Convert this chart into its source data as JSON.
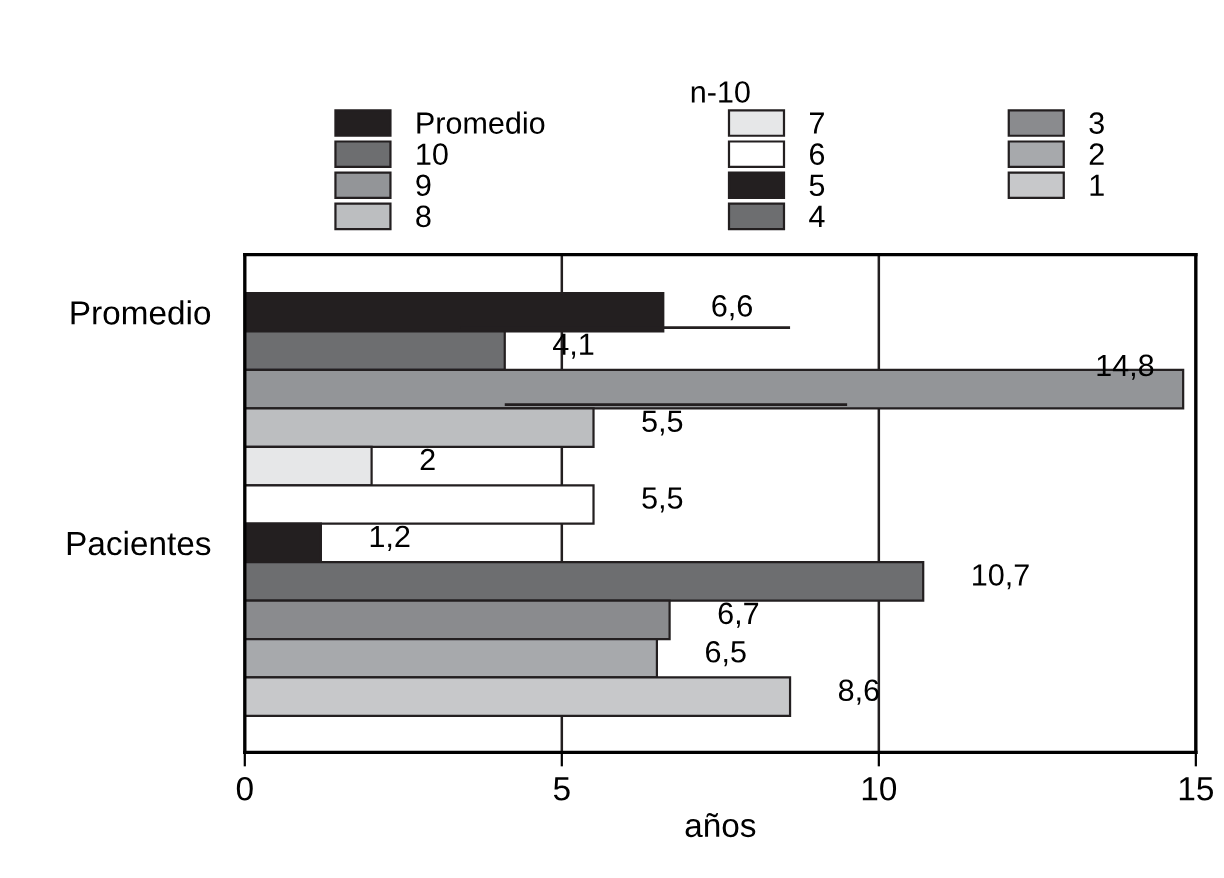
{
  "chart_data": {
    "type": "bar",
    "orientation": "horizontal",
    "xlabel": "años",
    "legend_title": "n-10",
    "categories": [
      "Promedio",
      null,
      null,
      null,
      null,
      null,
      "Pacientes",
      null,
      null,
      null,
      null
    ],
    "series": [
      {
        "name": "Promedio",
        "color": "#231f20",
        "values": [
          6.6,
          null,
          null,
          null,
          null,
          null,
          null,
          null,
          null,
          null,
          null
        ],
        "value_labels": [
          "6,6",
          null,
          null,
          null,
          null,
          null,
          null,
          null,
          null,
          null,
          null
        ],
        "errors": [
          [
            3.4,
            8.6
          ],
          null,
          null,
          null,
          null,
          null,
          null,
          null,
          null,
          null,
          null
        ]
      },
      {
        "name": "10",
        "color": "#6d6e70",
        "values": [
          null,
          4.1,
          null,
          null,
          null,
          null,
          null,
          null,
          null,
          null,
          null
        ],
        "value_labels": [
          null,
          "4,1",
          null,
          null,
          null,
          null,
          null,
          null,
          null,
          null,
          null
        ]
      },
      {
        "name": "9",
        "color": "#939598",
        "values": [
          null,
          null,
          14.8,
          null,
          null,
          null,
          null,
          null,
          null,
          null,
          null
        ],
        "value_labels": [
          null,
          null,
          "14,8",
          null,
          null,
          null,
          null,
          null,
          null,
          null,
          null
        ],
        "errors": [
          null,
          null,
          [
            4.1,
            9.5
          ],
          null,
          null,
          null,
          null,
          null,
          null,
          null,
          null
        ]
      },
      {
        "name": "8",
        "color": "#bcbec0",
        "values": [
          null,
          null,
          null,
          5.5,
          null,
          null,
          null,
          null,
          null,
          null,
          null
        ],
        "value_labels": [
          null,
          null,
          null,
          "5,5",
          null,
          null,
          null,
          null,
          null,
          null,
          null
        ]
      },
      {
        "name": "7",
        "color": "#e6e7e8",
        "values": [
          null,
          null,
          null,
          null,
          2,
          null,
          null,
          null,
          null,
          null,
          null
        ],
        "value_labels": [
          null,
          null,
          null,
          null,
          "2",
          null,
          null,
          null,
          null,
          null,
          null
        ]
      },
      {
        "name": "6",
        "color": "#ffffff",
        "values": [
          null,
          null,
          null,
          null,
          null,
          5.5,
          null,
          null,
          null,
          null,
          null
        ],
        "value_labels": [
          null,
          null,
          null,
          null,
          null,
          "5,5",
          null,
          null,
          null,
          null,
          null
        ]
      },
      {
        "name": "5",
        "color": "#231f20",
        "values": [
          null,
          null,
          null,
          null,
          null,
          null,
          1.2,
          null,
          null,
          null,
          null
        ],
        "value_labels": [
          null,
          null,
          null,
          null,
          null,
          null,
          "1,2",
          null,
          null,
          null,
          null
        ]
      },
      {
        "name": "4",
        "color": "#6d6e70",
        "values": [
          null,
          null,
          null,
          null,
          null,
          null,
          null,
          10.7,
          null,
          null,
          null
        ],
        "value_labels": [
          null,
          null,
          null,
          null,
          null,
          null,
          null,
          "10,7",
          null,
          null,
          null
        ]
      },
      {
        "name": "3",
        "color": "#8a8b8e",
        "values": [
          null,
          null,
          null,
          null,
          null,
          null,
          null,
          null,
          6.7,
          null,
          null
        ],
        "value_labels": [
          null,
          null,
          null,
          null,
          null,
          null,
          null,
          null,
          "6,7",
          null,
          null
        ]
      },
      {
        "name": "2",
        "color": "#a7a9ac",
        "values": [
          null,
          null,
          null,
          null,
          null,
          null,
          null,
          null,
          null,
          6.5,
          null
        ],
        "value_labels": [
          null,
          null,
          null,
          null,
          null,
          null,
          null,
          null,
          null,
          "6,5",
          null
        ]
      },
      {
        "name": "1",
        "color": "#c7c8ca",
        "values": [
          null,
          null,
          null,
          null,
          null,
          null,
          null,
          null,
          null,
          null,
          8.6
        ],
        "value_labels": [
          null,
          null,
          null,
          null,
          null,
          null,
          null,
          null,
          null,
          null,
          "8,6"
        ]
      }
    ],
    "xlim": [
      0,
      15
    ],
    "xticks": [
      0,
      5,
      10,
      15
    ],
    "grid": "x",
    "legend": "top"
  }
}
